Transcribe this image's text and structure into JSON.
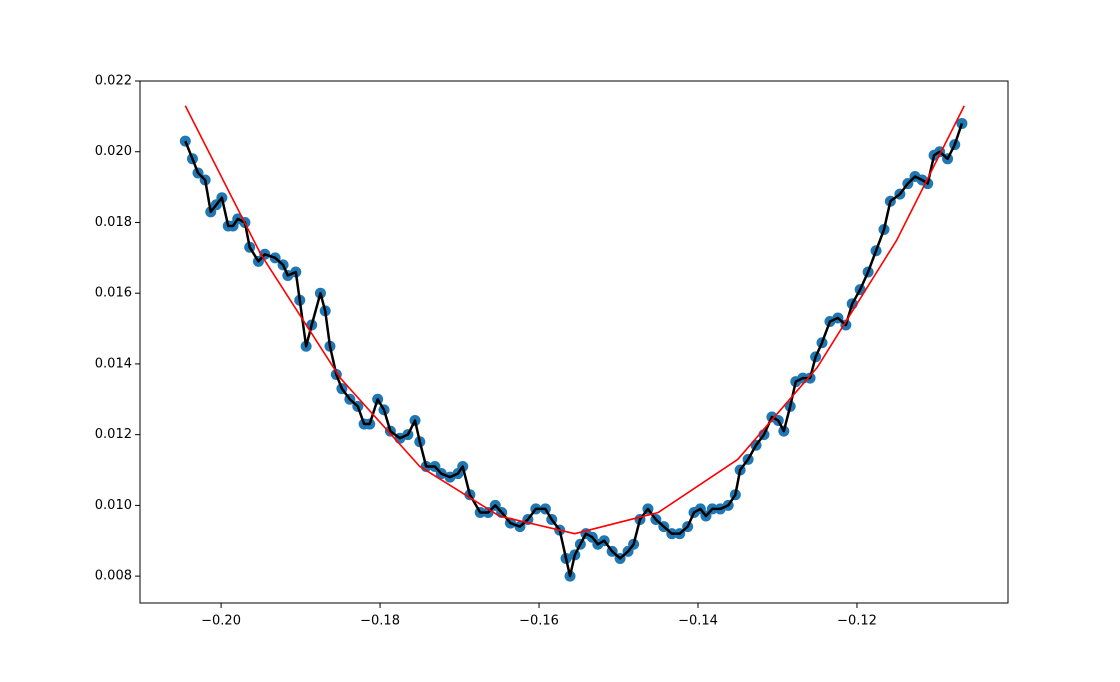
{
  "chart_data": {
    "type": "line",
    "xlim": [
      -0.2102,
      -0.101
    ],
    "ylim": [
      0.00724,
      0.022
    ],
    "xticks": [
      {
        "value": -0.2,
        "label": "−0.20"
      },
      {
        "value": -0.18,
        "label": "−0.18"
      },
      {
        "value": -0.16,
        "label": "−0.16"
      },
      {
        "value": -0.14,
        "label": "−0.14"
      },
      {
        "value": -0.12,
        "label": "−0.12"
      }
    ],
    "yticks": [
      0.008,
      {
        "value": 0.01,
        "label": "0.010"
      },
      0.012,
      0.014,
      0.016,
      0.018,
      {
        "value": 0.02,
        "label": "0.020"
      },
      0.022
    ],
    "grid": false,
    "series": [
      {
        "color": "#1f77b4",
        "line_color": "#000000",
        "marker": "o",
        "x": [
          -0.2045,
          -0.2036,
          -0.2029,
          -0.202,
          -0.2013,
          -0.2006,
          -0.1999,
          -0.1991,
          -0.1985,
          -0.1979,
          -0.197,
          -0.1964,
          -0.1953,
          -0.1945,
          -0.1932,
          -0.1922,
          -0.1916,
          -0.1906,
          -0.1901,
          -0.1893,
          -0.1886,
          -0.1875,
          -0.1869,
          -0.1863,
          -0.1855,
          -0.1848,
          -0.1838,
          -0.1828,
          -0.182,
          -0.1813,
          -0.1803,
          -0.1795,
          -0.1787,
          -0.1775,
          -0.1765,
          -0.1756,
          -0.175,
          -0.1742,
          -0.1731,
          -0.1723,
          -0.1712,
          -0.1702,
          -0.1696,
          -0.1687,
          -0.1674,
          -0.1664,
          -0.1655,
          -0.1647,
          -0.1636,
          -0.1624,
          -0.1614,
          -0.1604,
          -0.1592,
          -0.1584,
          -0.1574,
          -0.1566,
          -0.1561,
          -0.1555,
          -0.1548,
          -0.1541,
          -0.1533,
          -0.1526,
          -0.1518,
          -0.1508,
          -0.1498,
          -0.1488,
          -0.1481,
          -0.1473,
          -0.1463,
          -0.1453,
          -0.1443,
          -0.1433,
          -0.1423,
          -0.1413,
          -0.1405,
          -0.1397,
          -0.139,
          -0.1382,
          -0.1372,
          -0.1362,
          -0.1353,
          -0.1347,
          -0.1337,
          -0.1327,
          -0.1317,
          -0.1307,
          -0.1299,
          -0.1292,
          -0.1284,
          -0.1277,
          -0.1268,
          -0.1259,
          -0.1252,
          -0.1244,
          -0.1234,
          -0.1224,
          -0.1214,
          -0.1206,
          -0.1196,
          -0.1186,
          -0.1176,
          -0.1166,
          -0.1158,
          -0.1146,
          -0.1136,
          -0.1127,
          -0.1118,
          -0.1111,
          -0.1103,
          -0.1096,
          -0.1086,
          -0.1077,
          -0.1068
        ],
        "values": [
          0.0203,
          0.0198,
          0.0194,
          0.0192,
          0.0183,
          0.0185,
          0.0187,
          0.0179,
          0.0179,
          0.0181,
          0.018,
          0.0173,
          0.0169,
          0.0171,
          0.017,
          0.0168,
          0.0165,
          0.0166,
          0.0158,
          0.0145,
          0.0151,
          0.016,
          0.0155,
          0.0145,
          0.0137,
          0.0133,
          0.013,
          0.0128,
          0.0123,
          0.0123,
          0.013,
          0.0127,
          0.0121,
          0.0119,
          0.012,
          0.0124,
          0.0118,
          0.0111,
          0.0111,
          0.0109,
          0.0108,
          0.0109,
          0.0111,
          0.0103,
          0.0098,
          0.0098,
          0.01,
          0.0098,
          0.0095,
          0.0094,
          0.0096,
          0.0099,
          0.0099,
          0.0096,
          0.0093,
          0.0085,
          0.008,
          0.0086,
          0.0089,
          0.0092,
          0.0091,
          0.0089,
          0.009,
          0.0087,
          0.0085,
          0.0087,
          0.0089,
          0.0096,
          0.0099,
          0.0096,
          0.0094,
          0.0092,
          0.0092,
          0.0094,
          0.0098,
          0.0099,
          0.0097,
          0.0099,
          0.0099,
          0.01,
          0.0103,
          0.011,
          0.0113,
          0.0117,
          0.012,
          0.0125,
          0.0124,
          0.0121,
          0.0128,
          0.0135,
          0.0136,
          0.0136,
          0.0142,
          0.0146,
          0.0152,
          0.0153,
          0.0151,
          0.0157,
          0.0161,
          0.0166,
          0.0172,
          0.0178,
          0.0186,
          0.0188,
          0.0191,
          0.0193,
          0.0192,
          0.0191,
          0.0199,
          0.02,
          0.0198,
          0.0202,
          0.0208
        ]
      },
      {
        "color": "#ff0000",
        "x": [
          -0.2045,
          -0.195,
          -0.185,
          -0.175,
          -0.165,
          -0.1555,
          -0.145,
          -0.135,
          -0.125,
          -0.115,
          -0.1065
        ],
        "values": [
          0.0213,
          0.0171,
          0.0136,
          0.0111,
          0.0097,
          0.0092,
          0.0098,
          0.0113,
          0.0139,
          0.0175,
          0.0213
        ]
      }
    ]
  }
}
